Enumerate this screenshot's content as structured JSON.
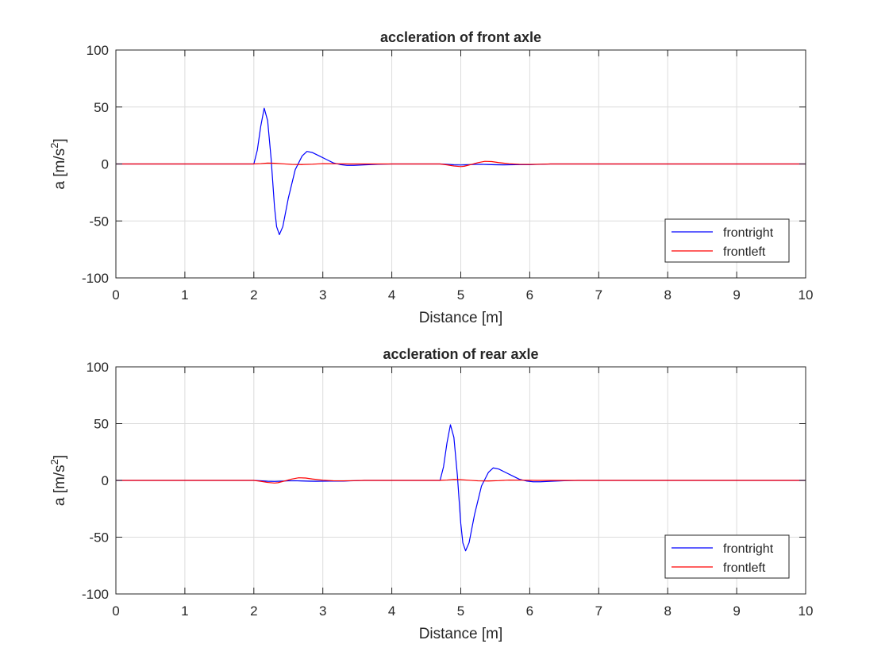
{
  "chart_data": [
    {
      "type": "line",
      "title": "accleration of front axle",
      "xlabel": "Distance [m]",
      "ylabel_main": "a [m/s",
      "ylabel_sup": "2",
      "ylabel_end": "]",
      "xlim": [
        0,
        10
      ],
      "ylim": [
        -100,
        100
      ],
      "xticks": [
        0,
        1,
        2,
        3,
        4,
        5,
        6,
        7,
        8,
        9,
        10
      ],
      "yticks": [
        -100,
        -50,
        0,
        50,
        100
      ],
      "grid": true,
      "legend_position": "bottom-right",
      "series": [
        {
          "name": "frontright",
          "color": "#0000ff",
          "x": [
            0,
            1.99,
            2.0,
            2.05,
            2.1,
            2.15,
            2.2,
            2.25,
            2.3,
            2.33,
            2.37,
            2.42,
            2.5,
            2.6,
            2.7,
            2.77,
            2.85,
            2.95,
            3.05,
            3.15,
            3.25,
            3.35,
            3.45,
            3.6,
            3.8,
            4.0,
            4.7,
            4.8,
            4.9,
            5.0,
            5.1,
            5.2,
            5.3,
            5.4,
            5.5,
            5.6,
            5.7,
            5.8,
            5.9,
            6.0,
            6.1,
            6.2,
            6.3,
            10
          ],
          "y": [
            0,
            0,
            0,
            12,
            33,
            49,
            38,
            5,
            -38,
            -55,
            -62,
            -55,
            -30,
            -5,
            7,
            11,
            10,
            7,
            4,
            1,
            -0.5,
            -1.2,
            -1.2,
            -0.8,
            -0.3,
            0,
            0,
            -0.3,
            -0.8,
            -0.9,
            -0.7,
            -0.4,
            -0.3,
            -0.5,
            -0.7,
            -0.8,
            -0.7,
            -0.6,
            -0.5,
            -0.6,
            -0.4,
            -0.2,
            0,
            0
          ]
        },
        {
          "name": "frontleft",
          "color": "#ff0000",
          "x": [
            0,
            1.99,
            2.1,
            2.2,
            2.3,
            2.4,
            2.55,
            2.7,
            2.85,
            3.0,
            3.2,
            3.4,
            4.7,
            4.8,
            4.9,
            5.0,
            5.05,
            5.15,
            5.25,
            5.35,
            5.45,
            5.55,
            5.7,
            5.85,
            6.0,
            6.15,
            6.3,
            10
          ],
          "y": [
            0,
            0,
            0.3,
            0.8,
            0.6,
            0.2,
            -0.4,
            -0.5,
            -0.2,
            0.3,
            0.2,
            0,
            0,
            -0.8,
            -1.8,
            -2.3,
            -2.0,
            -0.5,
            1.2,
            2.3,
            2.1,
            1.2,
            0.2,
            -0.3,
            -0.4,
            -0.2,
            0,
            0
          ]
        }
      ]
    },
    {
      "type": "line",
      "title": "accleration of rear axle",
      "xlabel": "Distance [m]",
      "ylabel_main": "a [m/s",
      "ylabel_sup": "2",
      "ylabel_end": "]",
      "xlim": [
        0,
        10
      ],
      "ylim": [
        -100,
        100
      ],
      "xticks": [
        0,
        1,
        2,
        3,
        4,
        5,
        6,
        7,
        8,
        9,
        10
      ],
      "yticks": [
        -100,
        -50,
        0,
        50,
        100
      ],
      "grid": true,
      "legend_position": "bottom-right",
      "series": [
        {
          "name": "frontright",
          "color": "#0000ff",
          "x": [
            0,
            2.0,
            2.1,
            2.2,
            2.3,
            2.4,
            2.5,
            2.6,
            2.7,
            2.8,
            2.9,
            3.0,
            3.1,
            3.2,
            3.3,
            3.4,
            3.5,
            3.6,
            4.69,
            4.7,
            4.75,
            4.8,
            4.85,
            4.9,
            4.95,
            5.0,
            5.03,
            5.07,
            5.12,
            5.2,
            5.3,
            5.4,
            5.47,
            5.55,
            5.65,
            5.75,
            5.85,
            5.95,
            6.05,
            6.15,
            6.3,
            6.5,
            6.7,
            10
          ],
          "y": [
            0,
            0,
            -0.3,
            -0.8,
            -0.9,
            -0.7,
            -0.4,
            -0.3,
            -0.5,
            -0.7,
            -0.8,
            -0.7,
            -0.6,
            -0.5,
            -0.6,
            -0.4,
            -0.2,
            0,
            0,
            0,
            12,
            33,
            49,
            38,
            5,
            -38,
            -55,
            -62,
            -55,
            -30,
            -5,
            7,
            11,
            10,
            7,
            4,
            1,
            -0.5,
            -1.2,
            -1.2,
            -0.8,
            -0.3,
            0,
            0
          ]
        },
        {
          "name": "frontleft",
          "color": "#ff0000",
          "x": [
            0,
            2.0,
            2.1,
            2.2,
            2.3,
            2.35,
            2.45,
            2.55,
            2.65,
            2.75,
            2.85,
            3.0,
            3.15,
            3.3,
            3.45,
            3.6,
            4.69,
            4.8,
            4.9,
            5.0,
            5.1,
            5.25,
            5.4,
            5.55,
            5.7,
            5.9,
            6.1,
            10
          ],
          "y": [
            0,
            0,
            -0.8,
            -1.8,
            -2.3,
            -2.0,
            -0.5,
            1.2,
            2.3,
            2.1,
            1.2,
            0.2,
            -0.3,
            -0.4,
            -0.2,
            0,
            0,
            0.3,
            0.8,
            0.6,
            0.2,
            -0.4,
            -0.5,
            -0.2,
            0.3,
            0.2,
            0,
            0
          ]
        }
      ]
    }
  ]
}
